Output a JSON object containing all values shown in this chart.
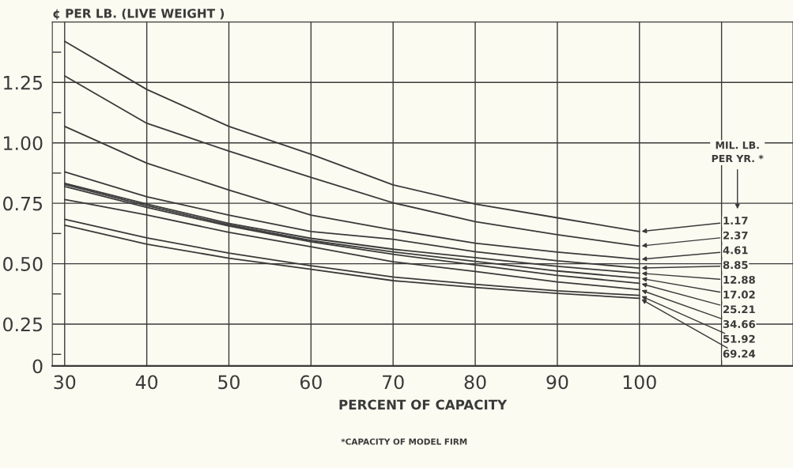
{
  "chart_data": {
    "type": "line",
    "ylabel": "¢ PER LB. (LIVE WEIGHT )",
    "xlabel": "PERCENT OF CAPACITY",
    "legend_title": "MIL. LB.\nPER YR. *",
    "annotations": [
      "*CAPACITY OF MODEL FIRM"
    ],
    "x": [
      30,
      40,
      50,
      60,
      70,
      80,
      90,
      100
    ],
    "series": [
      {
        "name": "1.17",
        "color": "#3a3a3a",
        "values": [
          1.42,
          1.221,
          1.068,
          0.953,
          0.826,
          0.747,
          0.69,
          0.633
        ]
      },
      {
        "name": "2.37",
        "color": "#3a3a3a",
        "values": [
          1.277,
          1.081,
          0.966,
          0.857,
          0.752,
          0.674,
          0.62,
          0.573
        ]
      },
      {
        "name": "4.61",
        "color": "#3a3a3a",
        "values": [
          1.068,
          0.916,
          0.805,
          0.701,
          0.64,
          0.585,
          0.548,
          0.518
        ]
      },
      {
        "name": "8.85",
        "color": "#3a3a3a",
        "values": [
          0.88,
          0.777,
          0.701,
          0.633,
          0.601,
          0.55,
          0.512,
          0.482
        ]
      },
      {
        "name": "12.88",
        "color": "#3a3a3a",
        "values": [
          0.833,
          0.747,
          0.667,
          0.605,
          0.56,
          0.525,
          0.489,
          0.461
        ]
      },
      {
        "name": "17.02",
        "color": "#3a3a3a",
        "values": [
          0.828,
          0.74,
          0.661,
          0.596,
          0.549,
          0.51,
          0.47,
          0.44
        ]
      },
      {
        "name": "25.21",
        "color": "#3a3a3a",
        "values": [
          0.82,
          0.733,
          0.656,
          0.591,
          0.539,
          0.495,
          0.452,
          0.419
        ]
      },
      {
        "name": "34.66",
        "color": "#3a3a3a",
        "values": [
          0.766,
          0.702,
          0.63,
          0.57,
          0.508,
          0.468,
          0.425,
          0.393
        ]
      },
      {
        "name": "51.92",
        "color": "#3a3a3a",
        "values": [
          0.684,
          0.607,
          0.544,
          0.492,
          0.445,
          0.415,
          0.388,
          0.369
        ]
      },
      {
        "name": "69.24",
        "color": "#3a3a3a",
        "values": [
          0.659,
          0.581,
          0.523,
          0.477,
          0.43,
          0.402,
          0.377,
          0.357
        ]
      }
    ],
    "xlim": [
      28.5,
      118.7
    ],
    "ylim": [
      0.077,
      1.5
    ],
    "xticks": [
      30,
      40,
      50,
      60,
      70,
      80,
      90,
      100,
      {
        "value": 110,
        "label": null
      }
    ],
    "yticks": [
      {
        "value": 0.077,
        "label": "0"
      },
      {
        "value": 0.125,
        "label": null
      },
      "0.25",
      {
        "value": 0.375,
        "label": null
      },
      {
        "value": 0.5,
        "label": "0.50"
      },
      {
        "value": 0.625,
        "label": null
      },
      {
        "value": 0.75,
        "label": "0.75"
      },
      {
        "value": 0.875,
        "label": null
      },
      {
        "value": 1.0,
        "label": "1.00"
      },
      {
        "value": 1.125,
        "label": null
      },
      {
        "value": 1.25,
        "label": "1.25"
      },
      {
        "value": 1.375,
        "label": null
      }
    ],
    "grid": true,
    "legend": "right",
    "line_style": "solid",
    "marker": "none"
  }
}
